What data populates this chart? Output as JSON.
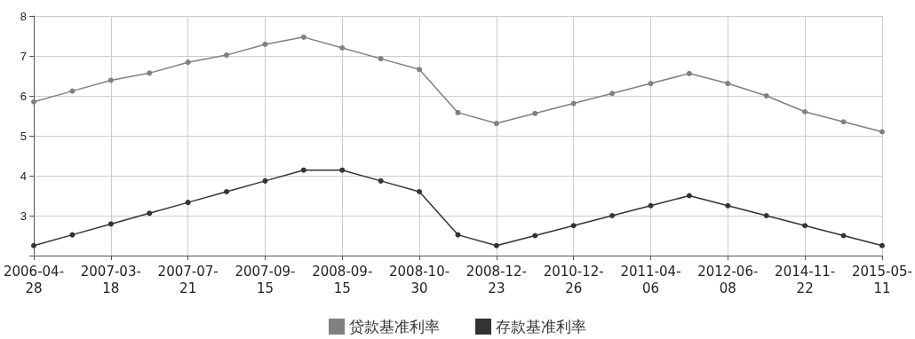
{
  "chart_data": {
    "type": "line",
    "categories": [
      "2006-04-28",
      null,
      "2007-03-18",
      null,
      "2007-07-21",
      null,
      "2007-09-15",
      null,
      "2008-09-15",
      null,
      "2008-10-30",
      null,
      "2008-12-23",
      null,
      "2010-12-26",
      null,
      "2011-04-06",
      null,
      "2012-06-08",
      null,
      "2014-11-22",
      null,
      "2015-05-11"
    ],
    "series": [
      {
        "name": "贷款基准利率",
        "color": "#808080",
        "values": [
          5.85,
          6.12,
          6.39,
          6.57,
          6.84,
          7.02,
          7.29,
          7.47,
          7.2,
          6.93,
          6.66,
          5.58,
          5.31,
          5.56,
          5.81,
          6.06,
          6.31,
          6.56,
          6.31,
          6.0,
          5.6,
          5.35,
          5.1
        ]
      },
      {
        "name": "存款基准利率",
        "color": "#333333",
        "values": [
          2.25,
          2.52,
          2.79,
          3.06,
          3.33,
          3.6,
          3.87,
          4.14,
          4.14,
          3.87,
          3.6,
          2.52,
          2.25,
          2.5,
          2.75,
          3.0,
          3.25,
          3.5,
          3.25,
          3.0,
          2.75,
          2.5,
          2.25
        ]
      }
    ],
    "ylim": [
      2,
      8
    ],
    "yticks": [
      {
        "value": 2,
        "label": null
      },
      3,
      4,
      5,
      6,
      7,
      8
    ],
    "grid": true,
    "legend": "bottom",
    "marker": "circle",
    "line_style": "solid"
  }
}
